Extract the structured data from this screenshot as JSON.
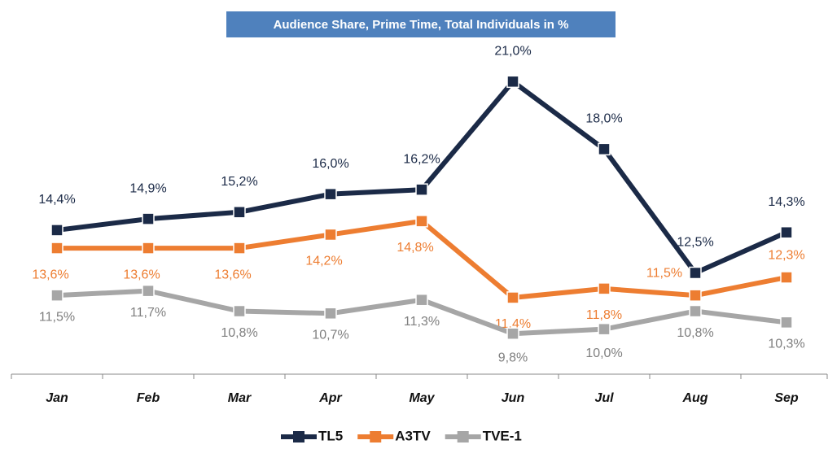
{
  "chart_data": {
    "type": "line",
    "title": "Audience Share, Prime Time, Total Individuals in %",
    "categories": [
      "Jan",
      "Feb",
      "Mar",
      "Apr",
      "May",
      "Jun",
      "Jul",
      "Aug",
      "Sep"
    ],
    "ylim": [
      8,
      23
    ],
    "series": [
      {
        "name": "TL5",
        "color": "#1b2a47",
        "values": [
          14.4,
          14.9,
          15.2,
          16.0,
          16.2,
          21.0,
          18.0,
          12.5,
          14.3
        ],
        "value_labels": [
          "14,4%",
          "14,9%",
          "15,2%",
          "16,0%",
          "16,2%",
          "21,0%",
          "18,0%",
          "12,5%",
          "14,3%"
        ]
      },
      {
        "name": "A3TV",
        "color": "#ed7d31",
        "values": [
          13.6,
          13.6,
          13.6,
          14.2,
          14.8,
          11.4,
          11.8,
          11.5,
          12.3
        ],
        "value_labels": [
          "13,6%",
          "13,6%",
          "13,6%",
          "14,2%",
          "14,8%",
          "11,4%",
          "11,8%",
          "11,5%",
          "12,3%"
        ]
      },
      {
        "name": "TVE-1",
        "color": "#a6a6a6",
        "values": [
          11.5,
          11.7,
          10.8,
          10.7,
          11.3,
          9.8,
          10.0,
          10.8,
          10.3
        ],
        "value_labels": [
          "11,5%",
          "11,7%",
          "10,8%",
          "10,7%",
          "11,3%",
          "9,8%",
          "10,0%",
          "10,8%",
          "10,3%"
        ]
      }
    ],
    "legend": "bottom"
  }
}
